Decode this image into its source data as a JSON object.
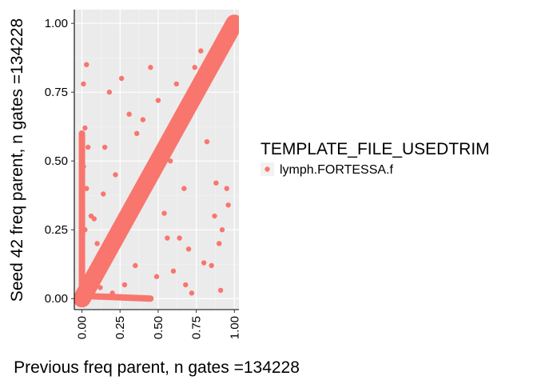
{
  "chart_data": {
    "type": "scatter",
    "xlabel": "Previous freq parent, n gates =134228",
    "ylabel": "Seed 42 freq parent, n gates =134228",
    "xlim": [
      -0.05,
      1.03
    ],
    "ylim": [
      -0.04,
      1.05
    ],
    "x_ticks": [
      0,
      0.25,
      0.5,
      0.75,
      1.0
    ],
    "x_tick_labels": [
      "0.00",
      "0.25",
      "0.50",
      "0.75",
      "1.00"
    ],
    "y_ticks": [
      0,
      0.25,
      0.5,
      0.75,
      1.0
    ],
    "y_tick_labels": [
      "0.00",
      "0.25",
      "0.50",
      "0.75",
      "1.00"
    ],
    "grid": true,
    "legend": {
      "title": "TEMPLATE_FILE_USEDTRIM",
      "placement": "right",
      "entries": [
        "lymph.FORTESSA.f"
      ]
    },
    "series": [
      {
        "name": "lymph.FORTESSA.f",
        "color": "#F8766D",
        "points": [
          [
            0.0,
            0.0
          ],
          [
            0.02,
            0.03
          ],
          [
            0.04,
            0.02
          ],
          [
            0.05,
            0.06
          ],
          [
            0.07,
            0.08
          ],
          [
            0.09,
            0.08
          ],
          [
            0.1,
            0.11
          ],
          [
            0.12,
            0.12
          ],
          [
            0.14,
            0.13
          ],
          [
            0.15,
            0.16
          ],
          [
            0.17,
            0.17
          ],
          [
            0.19,
            0.18
          ],
          [
            0.2,
            0.21
          ],
          [
            0.22,
            0.22
          ],
          [
            0.24,
            0.23
          ],
          [
            0.25,
            0.26
          ],
          [
            0.27,
            0.27
          ],
          [
            0.29,
            0.28
          ],
          [
            0.3,
            0.31
          ],
          [
            0.32,
            0.32
          ],
          [
            0.34,
            0.33
          ],
          [
            0.35,
            0.36
          ],
          [
            0.37,
            0.37
          ],
          [
            0.39,
            0.38
          ],
          [
            0.4,
            0.41
          ],
          [
            0.42,
            0.42
          ],
          [
            0.44,
            0.43
          ],
          [
            0.45,
            0.46
          ],
          [
            0.47,
            0.47
          ],
          [
            0.49,
            0.48
          ],
          [
            0.5,
            0.51
          ],
          [
            0.52,
            0.52
          ],
          [
            0.54,
            0.53
          ],
          [
            0.55,
            0.56
          ],
          [
            0.57,
            0.57
          ],
          [
            0.59,
            0.58
          ],
          [
            0.6,
            0.61
          ],
          [
            0.62,
            0.62
          ],
          [
            0.64,
            0.63
          ],
          [
            0.65,
            0.66
          ],
          [
            0.67,
            0.67
          ],
          [
            0.69,
            0.68
          ],
          [
            0.7,
            0.71
          ],
          [
            0.72,
            0.72
          ],
          [
            0.74,
            0.73
          ],
          [
            0.75,
            0.76
          ],
          [
            0.77,
            0.77
          ],
          [
            0.79,
            0.78
          ],
          [
            0.8,
            0.81
          ],
          [
            0.82,
            0.82
          ],
          [
            0.84,
            0.83
          ],
          [
            0.85,
            0.86
          ],
          [
            0.87,
            0.87
          ],
          [
            0.89,
            0.88
          ],
          [
            0.9,
            0.91
          ],
          [
            0.92,
            0.92
          ],
          [
            0.94,
            0.93
          ],
          [
            0.95,
            0.96
          ],
          [
            0.97,
            0.97
          ],
          [
            0.99,
            0.98
          ],
          [
            1.0,
            1.0
          ],
          [
            0.98,
            0.99
          ],
          [
            0.03,
            0.85
          ],
          [
            0.01,
            0.78
          ],
          [
            0.02,
            0.62
          ],
          [
            0.01,
            0.48
          ],
          [
            0.04,
            0.55
          ],
          [
            0.03,
            0.4
          ],
          [
            0.06,
            0.3
          ],
          [
            0.02,
            0.25
          ],
          [
            0.18,
            0.75
          ],
          [
            0.26,
            0.8
          ],
          [
            0.31,
            0.67
          ],
          [
            0.22,
            0.45
          ],
          [
            0.14,
            0.38
          ],
          [
            0.1,
            0.2
          ],
          [
            0.08,
            0.29
          ],
          [
            0.45,
            0.84
          ],
          [
            0.5,
            0.72
          ],
          [
            0.4,
            0.65
          ],
          [
            0.58,
            0.5
          ],
          [
            0.67,
            0.4
          ],
          [
            0.64,
            0.22
          ],
          [
            0.56,
            0.22
          ],
          [
            0.54,
            0.31
          ],
          [
            0.49,
            0.08
          ],
          [
            0.68,
            0.05
          ],
          [
            0.72,
            0.02
          ],
          [
            0.8,
            0.13
          ],
          [
            0.85,
            0.12
          ],
          [
            0.91,
            0.03
          ],
          [
            0.88,
            0.42
          ],
          [
            0.95,
            0.4
          ],
          [
            0.92,
            0.25
          ],
          [
            0.87,
            0.3
          ],
          [
            0.78,
            0.9
          ],
          [
            0.82,
            0.57
          ],
          [
            0.7,
            0.18
          ],
          [
            0.6,
            0.1
          ],
          [
            0.35,
            0.12
          ],
          [
            0.28,
            0.05
          ],
          [
            0.2,
            0.02
          ],
          [
            0.12,
            0.04
          ],
          [
            0.15,
            0.55
          ],
          [
            0.36,
            0.6
          ],
          [
            0.62,
            0.78
          ],
          [
            0.74,
            0.84
          ],
          [
            0.96,
            0.34
          ],
          [
            0.9,
            0.2
          ]
        ]
      }
    ]
  }
}
